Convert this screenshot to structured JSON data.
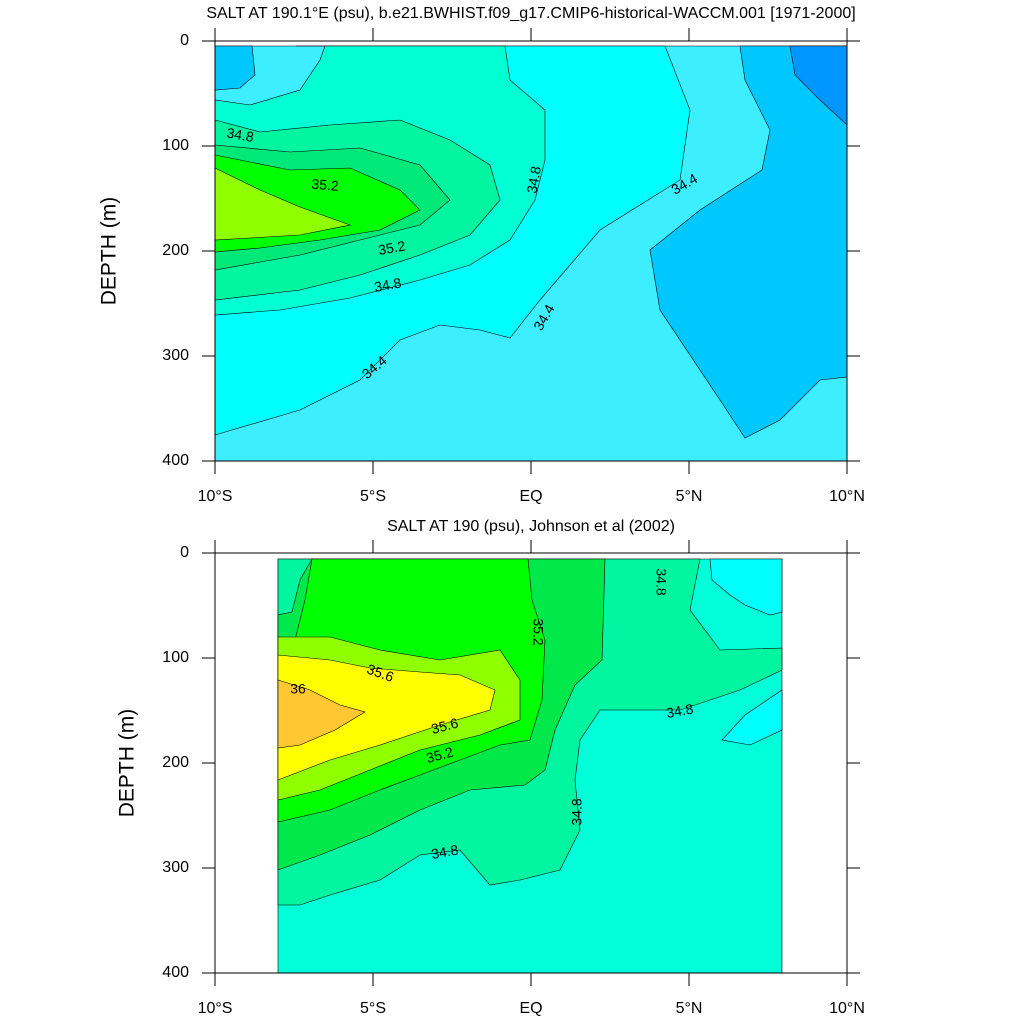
{
  "chart_data": [
    {
      "type": "contour",
      "title": "SALT AT 190.1°E (psu), b.e21.BWHIST.f09_g17.CMIP6-historical-WACCM.001 [1971-2000]",
      "ylabel": "DEPTH (m)",
      "xlim": [
        -10,
        10
      ],
      "ylim": [
        0,
        400
      ],
      "y_reversed": true,
      "xticks": [
        {
          "value": -10,
          "label": "10°S"
        },
        {
          "value": -5,
          "label": "5°S"
        },
        {
          "value": 0,
          "label": "EQ"
        },
        {
          "value": 5,
          "label": "5°N"
        },
        {
          "value": 10,
          "label": "10°N"
        }
      ],
      "yticks": [
        0,
        100,
        200,
        300,
        400
      ],
      "colors": [
        "#0096ff",
        "#00c8ff",
        "#3ceeff",
        "#00ffff",
        "#00ffd2",
        "#00f5a0",
        "#00e878",
        "#00ff00",
        "#90ff00"
      ],
      "contour_labels": [
        34.8,
        35.2,
        34.8,
        34.4,
        35.2,
        34.8,
        34.4,
        34.4
      ]
    },
    {
      "type": "contour",
      "title": "SALT AT 190 (psu), Johnson et al (2002)",
      "ylabel": "DEPTH (m)",
      "xlim": [
        -10,
        10
      ],
      "ylim": [
        0,
        400
      ],
      "y_reversed": true,
      "xticks": [
        {
          "value": -10,
          "label": "10°S"
        },
        {
          "value": -5,
          "label": "5°S"
        },
        {
          "value": 0,
          "label": "EQ"
        },
        {
          "value": 5,
          "label": "5°N"
        },
        {
          "value": 10,
          "label": "10°N"
        }
      ],
      "yticks": [
        0,
        100,
        200,
        300,
        400
      ],
      "colors": [
        "#00ffff",
        "#00ffd8",
        "#00f5a0",
        "#00e84a",
        "#00ff00",
        "#90ff00",
        "#ffff00",
        "#ffc832"
      ],
      "contour_labels": [
        34.8,
        35.2,
        35.6,
        36,
        35.6,
        35.2,
        34.8,
        34.8,
        34.8
      ]
    }
  ]
}
